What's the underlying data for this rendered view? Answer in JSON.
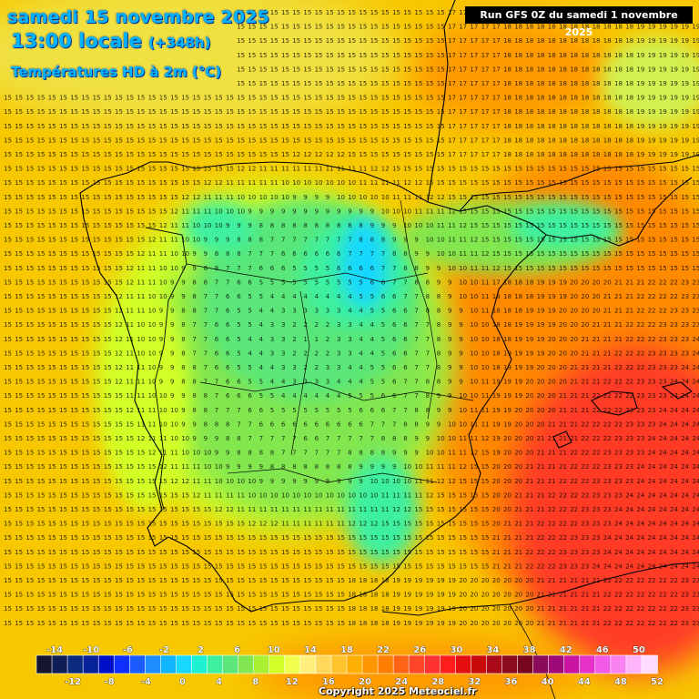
{
  "map": {
    "date_line": "samedi 15 novembre 2025",
    "time_line": "13:00 locale",
    "offset_line": "(+348h)",
    "field_label": "Températures HD à 2m (°C)",
    "run_info": "Run GFS 0Z du samedi 1 novembre 2025",
    "copyright": "Copyright 2025 Meteociel.fr",
    "region": "Iberian Peninsula",
    "variable": "temperature",
    "unit": "°C"
  },
  "legend": {
    "min": -16,
    "max": 52,
    "step": 2,
    "top_labels": [
      "-14",
      "-10",
      "-6",
      "-2",
      "2",
      "6",
      "10",
      "14",
      "18",
      "22",
      "26",
      "30",
      "34",
      "38",
      "42",
      "46",
      "50"
    ],
    "bottom_labels": [
      "-12",
      "-8",
      "-4",
      "0",
      "4",
      "8",
      "12",
      "16",
      "20",
      "24",
      "28",
      "32",
      "36",
      "40",
      "44",
      "48",
      "52"
    ],
    "colors": [
      "#151530",
      "#101e58",
      "#0a2a7e",
      "#06239c",
      "#0010c8",
      "#1030ff",
      "#1a5cff",
      "#1e8cff",
      "#10b4ff",
      "#19d8ff",
      "#1ef0d2",
      "#3cf0a0",
      "#5ae678",
      "#82e650",
      "#aaf032",
      "#d2ff28",
      "#f0ff50",
      "#fff07d",
      "#ffd75a",
      "#ffc32d",
      "#ffaf00",
      "#ff9600",
      "#ff7d00",
      "#ff6414",
      "#ff4628",
      "#ff3232",
      "#ff1e1e",
      "#e60f0f",
      "#c80a0a",
      "#aa0a19",
      "#8c0a1e",
      "#78061e",
      "#8c0a5a",
      "#a00a78",
      "#c814a0",
      "#e632c8",
      "#f05ae6",
      "#fa82f0",
      "#ffb4fa",
      "#ffdcff"
    ]
  },
  "notable_values": {
    "northwest_atlantic": 15,
    "central_meseta_min": 1,
    "southeast_mediterranean_max": 24,
    "north_africa_coast": 23
  }
}
